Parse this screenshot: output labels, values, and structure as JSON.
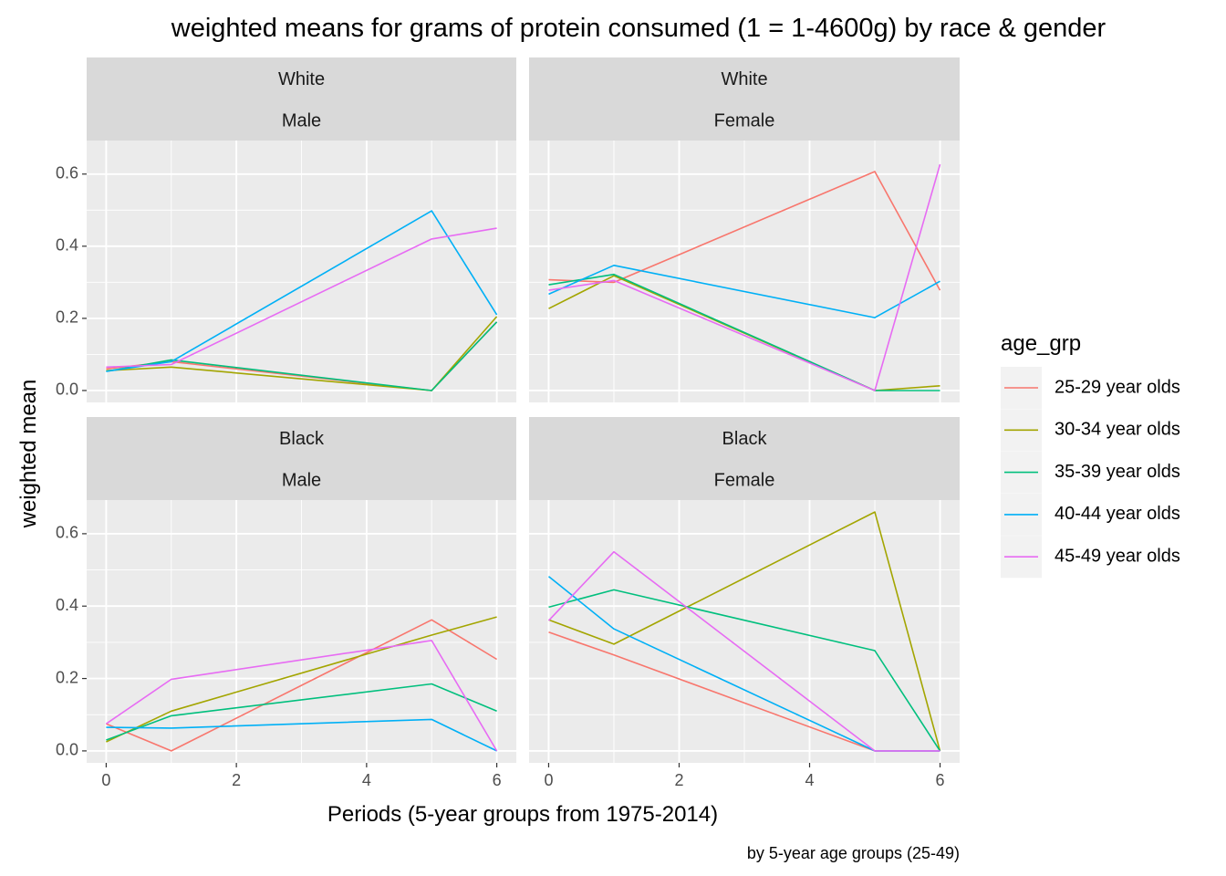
{
  "chart_data": {
    "type": "line",
    "title": "weighted means for grams of protein consumed (1 = 1-4600g) by race & gender",
    "xlabel": "Periods (5-year groups from 1975-2014)",
    "ylabel": "weighted mean",
    "caption": "by 5-year age groups (25-49)",
    "xlim": [
      -0.3,
      6.3
    ],
    "ylim": [
      -0.033,
      0.693
    ],
    "xticks": [
      0,
      2,
      4,
      6
    ],
    "xtick_labels": [
      "0",
      "2",
      "4",
      "6"
    ],
    "yticks": [
      0.0,
      0.2,
      0.4,
      0.6
    ],
    "ytick_labels": [
      "0.0",
      "0.2",
      "0.4",
      "0.6"
    ],
    "grid": true,
    "legend": {
      "title": "age_grp",
      "position": "right",
      "entries": [
        {
          "label": "25-29 year olds",
          "color": "#F8766D"
        },
        {
          "label": "30-34 year olds",
          "color": "#A3A500"
        },
        {
          "label": "35-39 year olds",
          "color": "#00BF7D"
        },
        {
          "label": "40-44 year olds",
          "color": "#00B0F6"
        },
        {
          "label": "45-49 year olds",
          "color": "#E76BF3"
        }
      ]
    },
    "x": [
      0,
      1,
      5,
      6
    ],
    "panels": [
      {
        "strip": [
          "White",
          "Male"
        ],
        "series": [
          {
            "name": "25-29 year olds",
            "values": [
              0.06,
              0.08,
              0.0,
              0.19
            ]
          },
          {
            "name": "30-34 year olds",
            "values": [
              0.055,
              0.065,
              0.0,
              0.205
            ]
          },
          {
            "name": "35-39 year olds",
            "values": [
              0.053,
              0.085,
              0.0,
              0.19
            ]
          },
          {
            "name": "40-44 year olds",
            "values": [
              0.053,
              0.08,
              0.498,
              0.21
            ]
          },
          {
            "name": "45-49 year olds",
            "values": [
              0.065,
              0.072,
              0.42,
              0.45
            ]
          }
        ]
      },
      {
        "strip": [
          "White",
          "Female"
        ],
        "series": [
          {
            "name": "25-29 year olds",
            "values": [
              0.307,
              0.3,
              0.607,
              0.278
            ]
          },
          {
            "name": "30-34 year olds",
            "values": [
              0.227,
              0.318,
              0.0,
              0.013
            ]
          },
          {
            "name": "35-39 year olds",
            "values": [
              0.293,
              0.322,
              0.0,
              0.0
            ]
          },
          {
            "name": "40-44 year olds",
            "values": [
              0.267,
              0.347,
              0.202,
              0.303
            ]
          },
          {
            "name": "45-49 year olds",
            "values": [
              0.278,
              0.305,
              0.0,
              0.627
            ]
          }
        ]
      },
      {
        "strip": [
          "Black",
          "Male"
        ],
        "series": [
          {
            "name": "25-29 year olds",
            "values": [
              0.075,
              0.0,
              0.362,
              0.253
            ]
          },
          {
            "name": "30-34 year olds",
            "values": [
              0.025,
              0.11,
              0.32,
              0.37
            ]
          },
          {
            "name": "35-39 year olds",
            "values": [
              0.03,
              0.097,
              0.185,
              0.11
            ]
          },
          {
            "name": "40-44 year olds",
            "values": [
              0.065,
              0.063,
              0.087,
              0.0
            ]
          },
          {
            "name": "45-49 year olds",
            "values": [
              0.075,
              0.198,
              0.305,
              0.0
            ]
          }
        ]
      },
      {
        "strip": [
          "Black",
          "Female"
        ],
        "series": [
          {
            "name": "25-29 year olds",
            "values": [
              0.328,
              0.265,
              0.0,
              0.0
            ]
          },
          {
            "name": "30-34 year olds",
            "values": [
              0.362,
              0.295,
              0.66,
              0.0
            ]
          },
          {
            "name": "35-39 year olds",
            "values": [
              0.397,
              0.445,
              0.277,
              0.0
            ]
          },
          {
            "name": "40-44 year olds",
            "values": [
              0.482,
              0.337,
              0.0,
              0.0
            ]
          },
          {
            "name": "45-49 year olds",
            "values": [
              0.36,
              0.55,
              0.0,
              0.0
            ]
          }
        ]
      }
    ]
  }
}
